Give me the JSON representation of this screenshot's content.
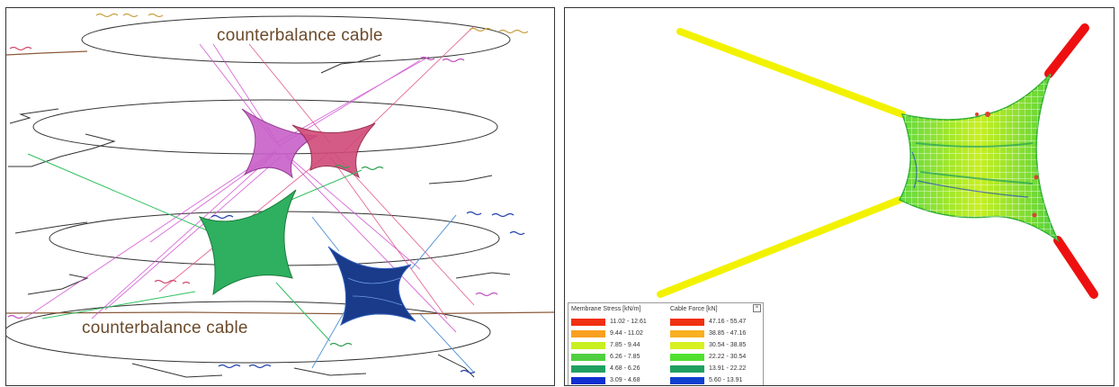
{
  "left_panel": {
    "captions": {
      "top": "counterbalance cable",
      "bottom": "counterbalance cable"
    }
  },
  "right_panel": {
    "legend": {
      "close_glyph": "×",
      "membrane": {
        "title": "Membrane Stress [kN/m]",
        "rows": [
          {
            "range": "11.02 - 12.61",
            "color": "#f03010"
          },
          {
            "range": "9.44 - 11.02",
            "color": "#f8a020"
          },
          {
            "range": "7.85 - 9.44",
            "color": "#c8f020"
          },
          {
            "range": "6.26 - 7.85",
            "color": "#50d040"
          },
          {
            "range": "4.68 - 6.26",
            "color": "#20a060"
          },
          {
            "range": "3.09 - 4.68",
            "color": "#1030d0"
          }
        ]
      },
      "cable": {
        "title": "Cable Force [kN]",
        "rows": [
          {
            "range": "47.16 - 55.47",
            "color": "#f03010"
          },
          {
            "range": "38.85 - 47.16",
            "color": "#f8b020"
          },
          {
            "range": "30.54 - 38.85",
            "color": "#d8f020"
          },
          {
            "range": "22.22 - 30.54",
            "color": "#50e030"
          },
          {
            "range": "13.91 - 22.22",
            "color": "#20a060"
          },
          {
            "range": "5.60 - 13.91",
            "color": "#1040d0"
          }
        ]
      }
    }
  }
}
